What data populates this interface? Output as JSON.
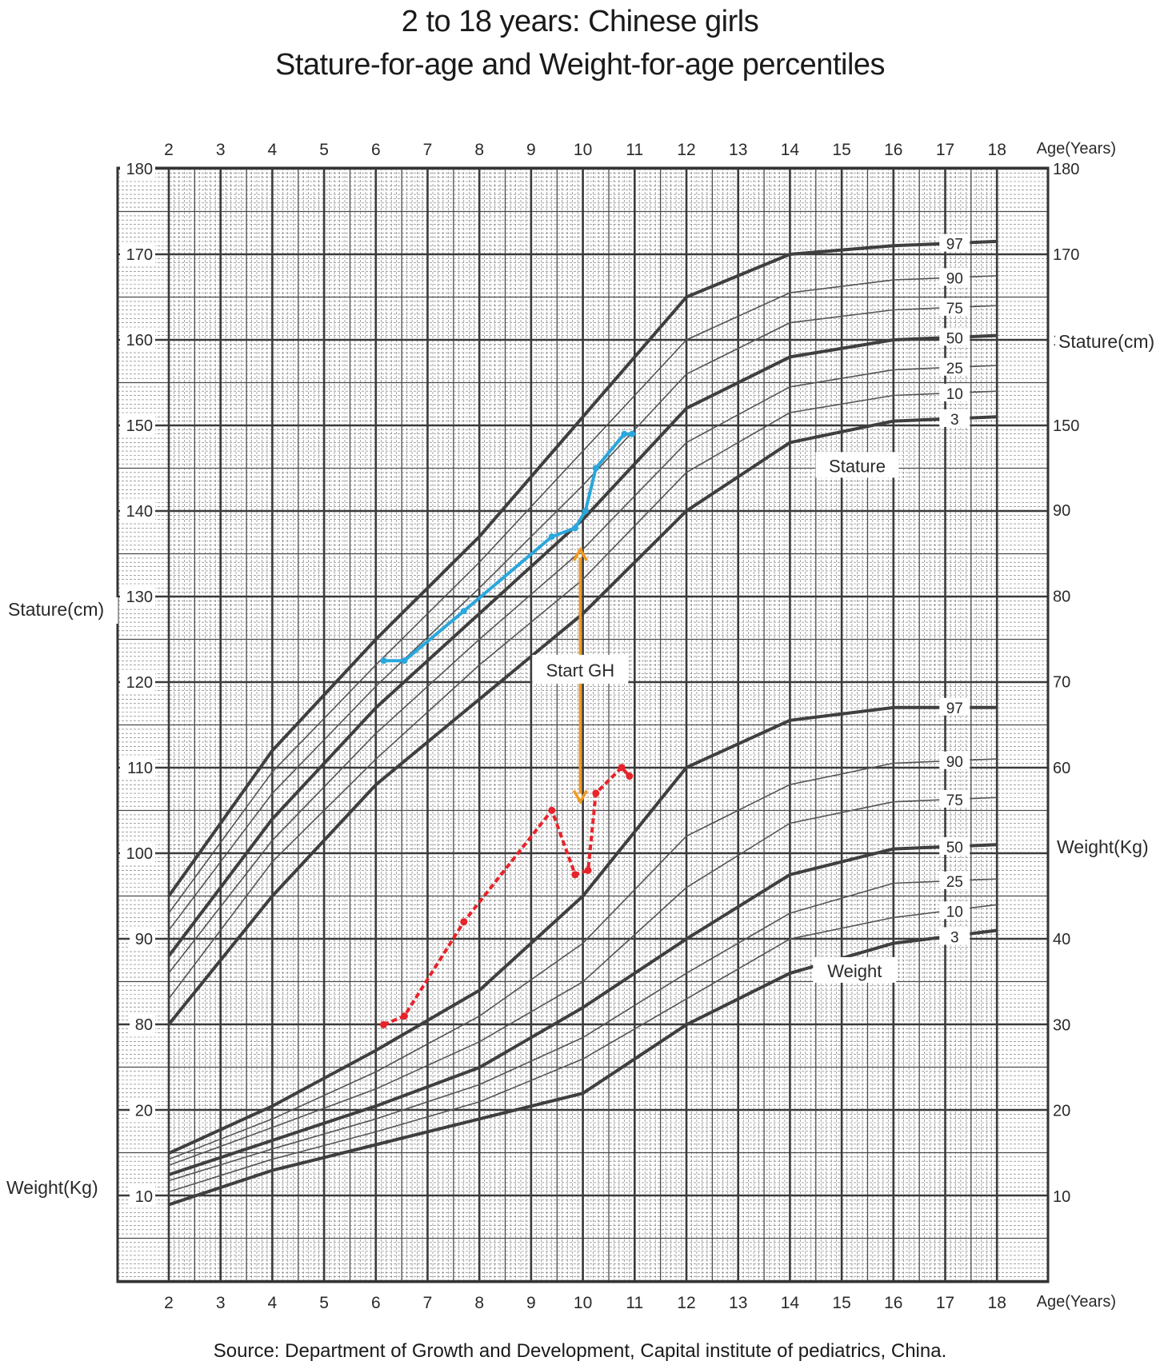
{
  "title_line1": "2 to 18 years: Chinese girls",
  "title_line2": "Stature-for-age and Weight-for-age percentiles",
  "source": "Source: Department of Growth and Development, Capital institute of pediatrics, China.",
  "colors": {
    "grid": "#4a4a4a",
    "curve": "#4d4d4d",
    "stature_patient": "#2aa7dc",
    "weight_patient": "#e8232a",
    "gh_arrow": "#f39a1e"
  },
  "chart_data": {
    "type": "line",
    "x_axis": {
      "label": "Age(Years)",
      "range": [
        2,
        18
      ],
      "ticks": [
        2,
        3,
        4,
        5,
        6,
        7,
        8,
        9,
        10,
        11,
        12,
        13,
        14,
        15,
        16,
        17,
        18
      ]
    },
    "stature_axis": {
      "label": "Stature(cm)",
      "left_ticks": [
        80,
        90,
        100,
        110,
        120,
        130,
        140,
        150,
        160,
        170,
        180
      ],
      "right_ticks": [
        150,
        160,
        170,
        180
      ],
      "range": [
        75,
        180
      ]
    },
    "weight_axis": {
      "label": "Weight(Kg)",
      "left_ticks": [
        10,
        20
      ],
      "right_ticks": [
        10,
        20,
        30,
        40,
        50,
        60,
        70,
        80,
        90
      ],
      "range": [
        0,
        95
      ]
    },
    "section_labels": {
      "stature": "Stature",
      "weight": "Weight"
    },
    "annotation": {
      "label": "Start GH",
      "age": 9.95,
      "from_weight": 56,
      "to_stature": 135.5
    },
    "stature_percentiles": [
      {
        "name": "97",
        "bold": true,
        "ages": [
          2,
          4,
          6,
          8,
          10,
          12,
          14,
          16,
          18
        ],
        "values": [
          95,
          112,
          125,
          137,
          151,
          165,
          170,
          171,
          171.5
        ]
      },
      {
        "name": "90",
        "bold": false,
        "ages": [
          2,
          4,
          6,
          8,
          10,
          12,
          14,
          16,
          18
        ],
        "values": [
          93,
          109.5,
          122,
          134,
          147,
          160,
          165.5,
          167,
          167.5
        ]
      },
      {
        "name": "75",
        "bold": false,
        "ages": [
          2,
          4,
          6,
          8,
          10,
          12,
          14,
          16,
          18
        ],
        "values": [
          91,
          107,
          119.5,
          131,
          143,
          156,
          162,
          163.5,
          164
        ]
      },
      {
        "name": "50",
        "bold": true,
        "ages": [
          2,
          4,
          6,
          8,
          10,
          12,
          14,
          16,
          18
        ],
        "values": [
          88,
          104,
          117,
          128,
          139,
          152,
          158,
          160,
          160.5
        ]
      },
      {
        "name": "25",
        "bold": false,
        "ages": [
          2,
          4,
          6,
          8,
          10,
          12,
          14,
          16,
          18
        ],
        "values": [
          86,
          101.5,
          114,
          125,
          135.5,
          148,
          154.5,
          156.5,
          157
        ]
      },
      {
        "name": "10",
        "bold": false,
        "ages": [
          2,
          4,
          6,
          8,
          10,
          12,
          14,
          16,
          18
        ],
        "values": [
          83,
          99,
          111,
          122,
          132,
          144.5,
          151.5,
          153.5,
          154
        ]
      },
      {
        "name": "3",
        "bold": true,
        "ages": [
          2,
          4,
          6,
          8,
          10,
          12,
          14,
          16,
          18
        ],
        "values": [
          80,
          95,
          108,
          118,
          128,
          140,
          148,
          150.5,
          151
        ]
      }
    ],
    "weight_percentiles": [
      {
        "name": "97",
        "bold": true,
        "ages": [
          2,
          4,
          6,
          8,
          10,
          12,
          14,
          16,
          18
        ],
        "values": [
          15,
          20.5,
          27,
          34,
          45,
          60,
          65.5,
          67,
          67
        ]
      },
      {
        "name": "90",
        "bold": false,
        "ages": [
          2,
          4,
          6,
          8,
          10,
          12,
          14,
          16,
          18
        ],
        "values": [
          14.3,
          19,
          24.5,
          31,
          39.5,
          52,
          58,
          60.5,
          61
        ]
      },
      {
        "name": "75",
        "bold": false,
        "ages": [
          2,
          4,
          6,
          8,
          10,
          12,
          14,
          16,
          18
        ],
        "values": [
          13.6,
          18,
          22.5,
          28,
          35,
          46,
          53.5,
          56,
          56.5
        ]
      },
      {
        "name": "50",
        "bold": true,
        "ages": [
          2,
          4,
          6,
          8,
          10,
          12,
          14,
          16,
          18
        ],
        "values": [
          12.5,
          16.5,
          20.5,
          25,
          32,
          40,
          47.5,
          50.5,
          51
        ]
      },
      {
        "name": "25",
        "bold": false,
        "ages": [
          2,
          4,
          6,
          8,
          10,
          12,
          14,
          16,
          18
        ],
        "values": [
          11.8,
          15.5,
          19,
          23,
          28.5,
          36,
          43,
          46.5,
          47
        ]
      },
      {
        "name": "10",
        "bold": false,
        "ages": [
          2,
          4,
          6,
          8,
          10,
          12,
          14,
          16,
          18
        ],
        "values": [
          10.5,
          14.3,
          17.5,
          21,
          26,
          33,
          40,
          42.5,
          44
        ]
      },
      {
        "name": "3",
        "bold": true,
        "ages": [
          2,
          4,
          6,
          8,
          10,
          12,
          14,
          16,
          18
        ],
        "values": [
          9,
          13,
          16,
          19,
          22,
          30,
          36,
          39.5,
          41
        ]
      }
    ],
    "patient_stature": {
      "ages": [
        6.15,
        6.55,
        7.7,
        9.4,
        9.85,
        10.05,
        10.25,
        10.8,
        10.95
      ],
      "values": [
        122.5,
        122.5,
        128.3,
        137,
        138,
        140,
        145,
        149,
        149
      ]
    },
    "patient_weight": {
      "ages": [
        6.15,
        6.55,
        7.7,
        9.4,
        9.85,
        10.1,
        10.25,
        10.75,
        10.9
      ],
      "values": [
        30,
        31,
        42,
        55,
        47.5,
        48,
        57,
        60,
        59
      ]
    }
  }
}
